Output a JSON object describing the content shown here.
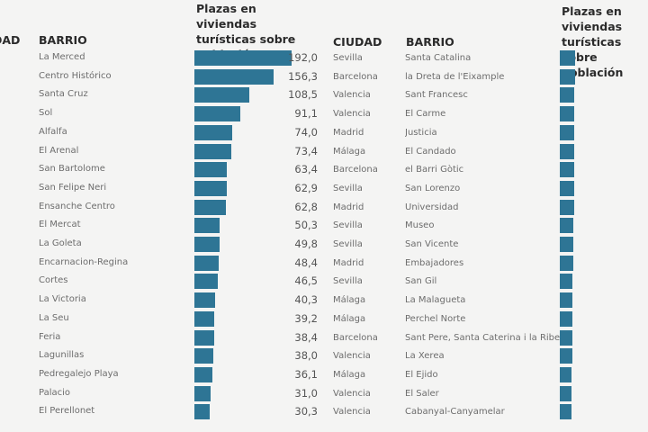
{
  "colors": {
    "bar": "#2e7595",
    "background": "#f4f4f3"
  },
  "chart_data": [
    {
      "type": "bar",
      "orientation": "horizontal",
      "title": "Plazas en viviendas turísticas sobre población",
      "headers": {
        "city": "CIUDAD",
        "barrio": "BARRIO"
      },
      "categories": [
        "La Merced",
        "Centro Histórico",
        "Santa Cruz",
        "Sol",
        "Alfalfa",
        "El Arenal",
        "San Bartolome",
        "San Felipe Neri",
        "Ensanche Centro",
        "El Mercat",
        "La Goleta",
        "Encarnacion-Regina",
        "Cortes",
        "La Victoria",
        "La Seu",
        "Feria",
        "Lagunillas",
        "Pedregalejo Playa",
        "Palacio",
        "El Perellonet"
      ],
      "values": [
        192.0,
        156.3,
        108.5,
        91.1,
        74.0,
        73.4,
        63.4,
        62.9,
        62.8,
        50.3,
        49.8,
        48.4,
        46.5,
        40.3,
        39.2,
        38.4,
        38.0,
        36.1,
        31.0,
        30.3
      ],
      "labels": [
        "192,0",
        "156,3",
        "108,5",
        "91,1",
        "74,0",
        "73,4",
        "63,4",
        "62,9",
        "62,8",
        "50,3",
        "49,8",
        "48,4",
        "46,5",
        "40,3",
        "39,2",
        "38,4",
        "38,0",
        "36,1",
        "31,0",
        "30,3"
      ]
    },
    {
      "type": "bar",
      "orientation": "horizontal",
      "title": "Plazas en viviendas turísticas sobre población",
      "headers": {
        "city": "CIUDAD",
        "barrio": "BARRIO"
      },
      "cities": [
        "Sevilla",
        "Barcelona",
        "Valencia",
        "Valencia",
        "Madrid",
        "Málaga",
        "Barcelona",
        "Sevilla",
        "Madrid",
        "Sevilla",
        "Sevilla",
        "Madrid",
        "Sevilla",
        "Málaga",
        "Málaga",
        "Barcelona",
        "Valencia",
        "Málaga",
        "Valencia",
        "Valencia"
      ],
      "categories": [
        "Santa Catalina",
        "la Dreta de l'Eixample",
        "Sant Francesc",
        "El Carme",
        "Justicia",
        "El Candado",
        "el Barri Gòtic",
        "San Lorenzo",
        "Universidad",
        "Museo",
        "San Vicente",
        "Embajadores",
        "San Gil",
        "La Malagueta",
        "Perchel Norte",
        "Sant Pere, Santa Caterina i la Ribera",
        "La Xerea",
        "El Ejido",
        "El Saler",
        "Cabanyal-Canyamelar"
      ],
      "values": [
        30.0,
        29.8,
        29.0,
        28.9,
        28.7,
        28.5,
        28.0,
        27.8,
        27.6,
        26.9,
        26.5,
        26.0,
        25.6,
        25.0,
        24.8,
        24.5,
        24.2,
        23.8,
        23.1,
        22.6
      ]
    }
  ]
}
